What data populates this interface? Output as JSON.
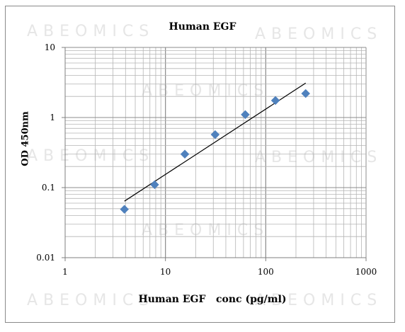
{
  "watermark": "ABEOMICS",
  "chart_data": {
    "type": "scatter",
    "title": "Human EGF",
    "xlabel": "Human EGF   conc (pg/ml)",
    "ylabel": "OD 450nm",
    "x_scale": "log",
    "y_scale": "log",
    "xlim": [
      1,
      1000
    ],
    "ylim": [
      0.01,
      10
    ],
    "x_ticks": [
      1,
      10,
      100,
      1000
    ],
    "x_tick_labels": [
      "1",
      "10",
      "100",
      "1000"
    ],
    "y_ticks": [
      0.01,
      0.1,
      1,
      10
    ],
    "y_tick_labels": [
      "0.01",
      "0.1",
      "1",
      "10"
    ],
    "grid": true,
    "legend": "none",
    "series": [
      {
        "marker": "diamond",
        "color": "#4f81bd",
        "x": [
          3.9,
          7.8,
          15.6,
          31.3,
          62.5,
          125,
          250
        ],
        "y": [
          0.049,
          0.11,
          0.3,
          0.57,
          1.1,
          1.75,
          2.2
        ]
      }
    ],
    "trendline": {
      "type": "power",
      "color": "#000000",
      "x": [
        3.9,
        250
      ],
      "y": [
        0.064,
        3.1
      ]
    }
  }
}
